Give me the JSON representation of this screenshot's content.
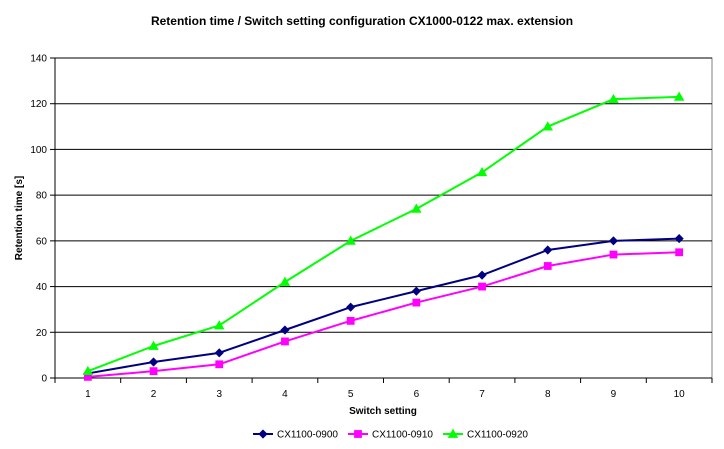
{
  "chart_data": {
    "type": "line",
    "title": "Retention time / Switch setting configuration CX1000-0122 max. extension",
    "xlabel": "Switch setting",
    "ylabel": "Retention time [s]",
    "categories": [
      "1",
      "2",
      "3",
      "4",
      "5",
      "6",
      "7",
      "8",
      "9",
      "10"
    ],
    "ylim": [
      0,
      140
    ],
    "yticks": [
      "0",
      "20",
      "40",
      "60",
      "80",
      "100",
      "120",
      "140"
    ],
    "grid": true,
    "legend_position": "bottom",
    "series": [
      {
        "name": "CX1100-0900",
        "color": "#000080",
        "marker": "diamond",
        "values": [
          2,
          7,
          11,
          21,
          31,
          38,
          45,
          56,
          60,
          61
        ]
      },
      {
        "name": "CX1100-0910",
        "color": "#FF00FF",
        "marker": "square",
        "values": [
          0.5,
          3,
          6,
          16,
          25,
          33,
          40,
          49,
          54,
          55
        ]
      },
      {
        "name": "CX1100-0920",
        "color": "#00FF00",
        "marker": "triangle",
        "values": [
          3,
          14,
          23,
          42,
          60,
          74,
          90,
          110,
          122,
          123
        ]
      }
    ]
  }
}
